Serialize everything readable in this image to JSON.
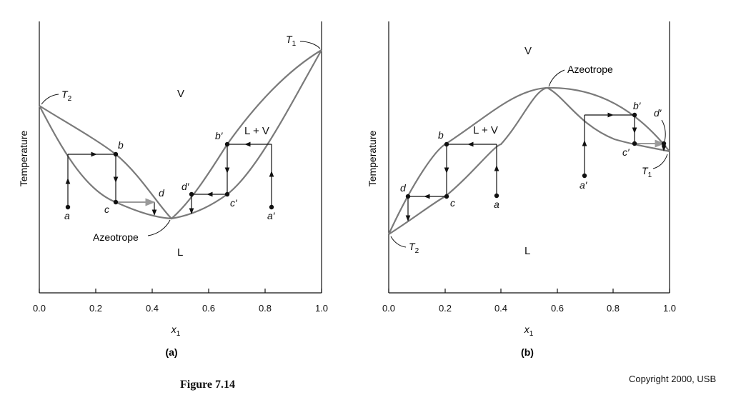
{
  "figure_caption": "Figure 7.14",
  "copyright": "Copyright 2000, USB",
  "colors": {
    "curve": "#7a7a7a",
    "ink": "#111111",
    "gray_arrow": "#9a9a9a"
  },
  "panels": [
    {
      "id": "a",
      "panel_label": "(a)",
      "ylabel": "Temperature",
      "xlabel": "x",
      "xlabel_sub": "1",
      "xticks": [
        "0.0",
        "0.2",
        "0.4",
        "0.6",
        "0.8",
        "1.0"
      ],
      "region_labels": {
        "V": "V",
        "LV": "L + V",
        "L": "L"
      },
      "T_left": "T",
      "T_left_sub": "2",
      "T_right": "T",
      "T_right_sub": "1",
      "azeotrope": "Azeotrope",
      "points": {
        "a": "a",
        "b": "b",
        "c": "c",
        "d": "d",
        "a_prime": "a′",
        "b_prime": "b′",
        "c_prime": "c′",
        "d_prime": "d′"
      }
    },
    {
      "id": "b",
      "panel_label": "(b)",
      "ylabel": "Temperature",
      "xlabel": "x",
      "xlabel_sub": "1",
      "xticks": [
        "0.0",
        "0.2",
        "0.4",
        "0.6",
        "0.8",
        "1.0"
      ],
      "region_labels": {
        "V": "V",
        "LV": "L + V",
        "L": "L"
      },
      "T_left": "T",
      "T_left_sub": "2",
      "T_right": "T",
      "T_right_sub": "1",
      "azeotrope": "Azeotrope",
      "points": {
        "a": "a",
        "b": "b",
        "c": "c",
        "d": "d",
        "a_prime": "a′",
        "b_prime": "b′",
        "c_prime": "c′",
        "d_prime": "d′"
      }
    }
  ]
}
